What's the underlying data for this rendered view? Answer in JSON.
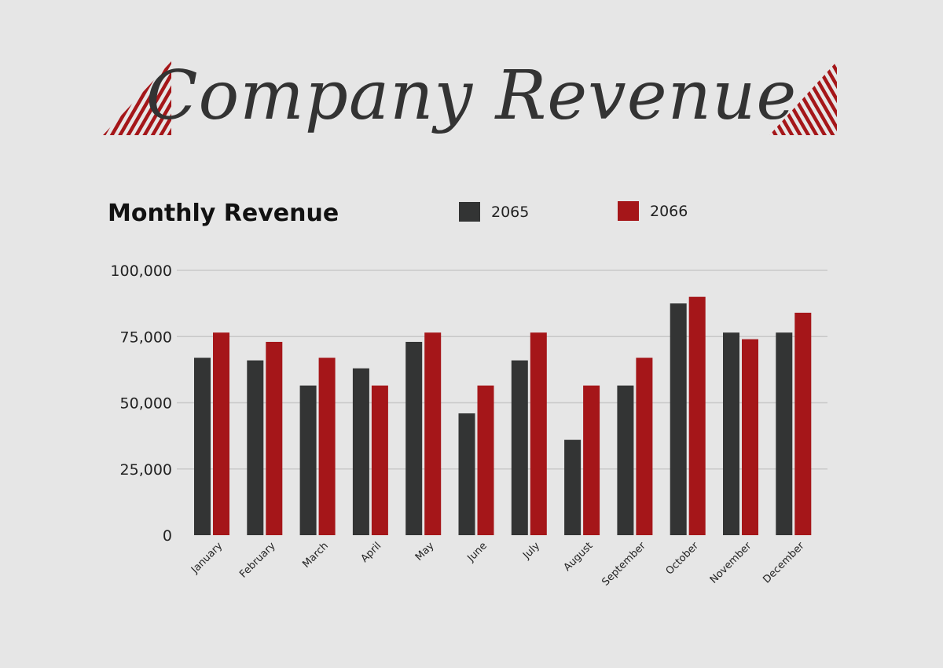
{
  "title": "Company Revenue",
  "colors": {
    "background": "#e6e6e6",
    "series_2065": "#333434",
    "series_2066": "#a51619",
    "title": "#333333"
  },
  "chart_data": {
    "type": "bar",
    "title": "Monthly Revenue",
    "categories": [
      "January",
      "February",
      "March",
      "April",
      "May",
      "June",
      "July",
      "August",
      "September",
      "October",
      "November",
      "December"
    ],
    "series": [
      {
        "name": "2065",
        "values": [
          67000,
          66000,
          56500,
          63000,
          73000,
          46000,
          66000,
          36000,
          56500,
          87500,
          76500,
          76500
        ]
      },
      {
        "name": "2066",
        "values": [
          76500,
          73000,
          67000,
          56500,
          76500,
          56500,
          76500,
          56500,
          67000,
          90000,
          74000,
          84000
        ]
      }
    ],
    "ylim": [
      0,
      100000
    ],
    "yticks": [
      "0",
      "25,000",
      "50,000",
      "75,000",
      "100,000"
    ],
    "grid": true,
    "legend_placement": "top"
  }
}
